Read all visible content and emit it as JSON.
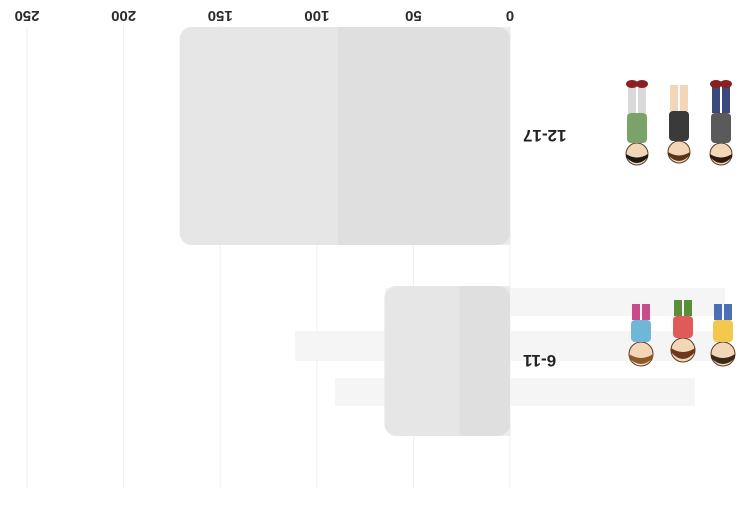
{
  "chart_data": {
    "type": "bar",
    "orientation": "horizontal",
    "categories": [
      "6-11",
      "12-17"
    ],
    "values": [
      65,
      171
    ],
    "xlim": [
      0,
      250
    ],
    "x_ticks": [
      "0",
      "50",
      "100",
      "150",
      "200",
      "250"
    ],
    "grid": true,
    "image_flipped": true,
    "segments_note_free": true
  },
  "colors": {
    "bar_fill": "#e6e6e6",
    "bar_shade": "#d6d6d6",
    "grid": "#efefef",
    "text": "#2b2b2b"
  },
  "icons": [
    "children-group-icon",
    "teens-group-icon"
  ]
}
